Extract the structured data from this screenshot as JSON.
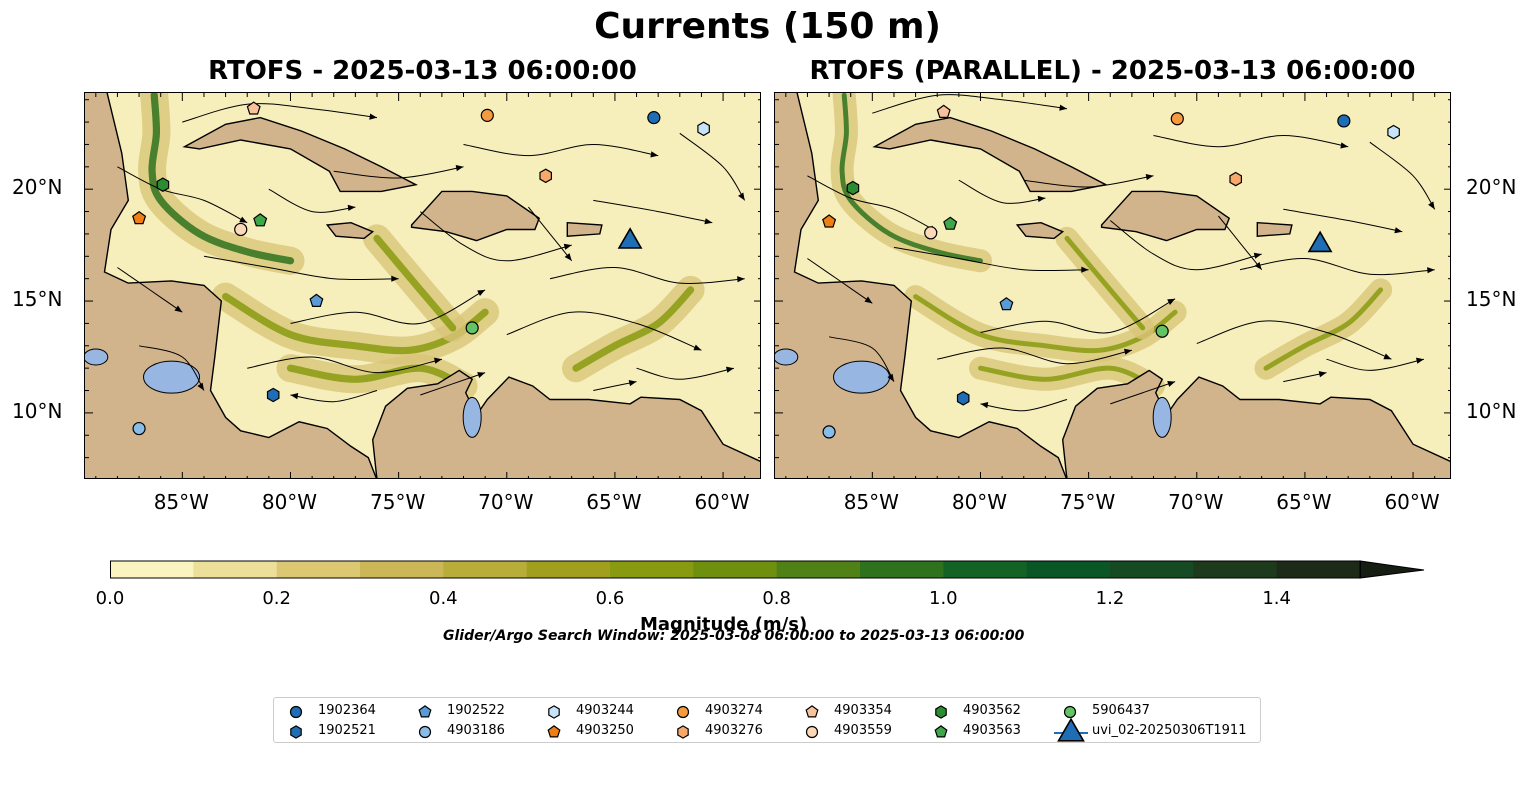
{
  "title": "Currents (150 m)",
  "panels": [
    {
      "title": "RTOFS - 2025-03-13 06:00:00"
    },
    {
      "title": "RTOFS (PARALLEL) - 2025-03-13 06:00:00"
    }
  ],
  "map": {
    "lon_range": [
      -89.5,
      -58.2
    ],
    "lat_range": [
      7.0,
      24.3
    ],
    "lon_ticks": [
      "85°W",
      "80°W",
      "75°W",
      "70°W",
      "65°W",
      "60°W"
    ],
    "lat_ticks": [
      "20°N",
      "15°N",
      "10°N"
    ]
  },
  "colorbar": {
    "label": "Magnitude (m/s)",
    "range": [
      0.0,
      1.5
    ],
    "ticks": [
      "0.0",
      "0.2",
      "0.4",
      "0.6",
      "0.8",
      "1.0",
      "1.2",
      "1.4"
    ],
    "colors": [
      "#faf4c0",
      "#ecdf9a",
      "#dcc873",
      "#ccb758",
      "#b9ad3a",
      "#a0a01e",
      "#889a10",
      "#6f8f0f",
      "#4f8117",
      "#2f721e",
      "#156324",
      "#0b5625",
      "#164a22",
      "#1d3a1d",
      "#1c2a17",
      "#161d12"
    ]
  },
  "search_window": "Glider/Argo Search Window: 2025-03-08 06:00:00 to 2025-03-13 06:00:00",
  "legend": [
    {
      "label": "1902364",
      "marker": "circle",
      "color": "#1f6db5"
    },
    {
      "label": "1902521",
      "marker": "hexagon",
      "color": "#1f6db5"
    },
    {
      "label": "1902522",
      "marker": "pentagon",
      "color": "#5b9bd5"
    },
    {
      "label": "4903186",
      "marker": "circle",
      "color": "#89bde8"
    },
    {
      "label": "4903244",
      "marker": "hexagon",
      "color": "#c6e3f7"
    },
    {
      "label": "4903250",
      "marker": "pentagon",
      "color": "#f07f13"
    },
    {
      "label": "4903274",
      "marker": "circle",
      "color": "#f59a3f"
    },
    {
      "label": "4903276",
      "marker": "hexagon",
      "color": "#f8a86a"
    },
    {
      "label": "4903354",
      "marker": "pentagon",
      "color": "#f9c29a"
    },
    {
      "label": "4903559",
      "marker": "circle",
      "color": "#fbd9b9"
    },
    {
      "label": "4903562",
      "marker": "hexagon",
      "color": "#2c8c31"
    },
    {
      "label": "4903563",
      "marker": "pentagon",
      "color": "#3fa64a"
    },
    {
      "label": "5906437",
      "marker": "circle",
      "color": "#63c466"
    },
    {
      "label": "uvi_02-20250306T1911",
      "marker": "triangle",
      "color": "#1f6db5"
    }
  ],
  "platforms": [
    {
      "id": "1902364",
      "lon": -63.2,
      "lat": 23.2
    },
    {
      "id": "1902521",
      "lon": -80.8,
      "lat": 10.8
    },
    {
      "id": "1902522",
      "lon": -78.8,
      "lat": 15.0
    },
    {
      "id": "4903186",
      "lon": -87.0,
      "lat": 9.3
    },
    {
      "id": "4903244",
      "lon": -60.9,
      "lat": 22.7
    },
    {
      "id": "4903250",
      "lon": -87.0,
      "lat": 18.7
    },
    {
      "id": "4903274",
      "lon": -70.9,
      "lat": 23.3
    },
    {
      "id": "4903276",
      "lon": -68.2,
      "lat": 20.6
    },
    {
      "id": "4903354",
      "lon": -81.7,
      "lat": 23.6
    },
    {
      "id": "4903559",
      "lon": -82.3,
      "lat": 18.2
    },
    {
      "id": "4903562",
      "lon": -85.9,
      "lat": 20.2
    },
    {
      "id": "4903563",
      "lon": -81.4,
      "lat": 18.6
    },
    {
      "id": "5906437",
      "lon": -71.6,
      "lat": 13.8
    },
    {
      "id": "uvi_02-20250306T1911",
      "lon": -64.3,
      "lat": 17.8
    }
  ],
  "land_color": "#d2b48c",
  "inland_water_color": "#97b6e1"
}
